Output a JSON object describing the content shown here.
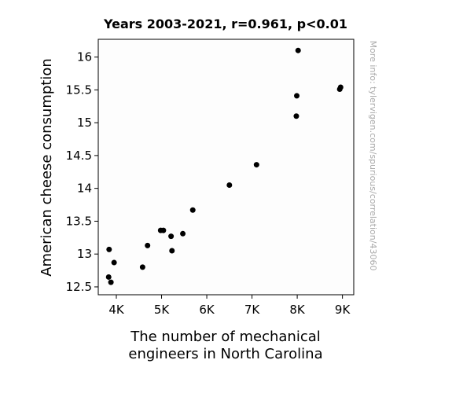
{
  "chart_data": {
    "type": "scatter",
    "title": "Years 2003-2021, r=0.961, p<0.01",
    "xlabel_lines": [
      "The number of mechanical",
      "engineers in North Carolina"
    ],
    "ylabel": "American cheese consumption",
    "xlim": [
      3600,
      9250
    ],
    "ylim": [
      12.38,
      16.27
    ],
    "xticks": [
      {
        "value": 4000,
        "label": "4K"
      },
      {
        "value": 5000,
        "label": "5K"
      },
      {
        "value": 6000,
        "label": "6K"
      },
      {
        "value": 7000,
        "label": "7K"
      },
      {
        "value": 8000,
        "label": "8K"
      },
      {
        "value": 9000,
        "label": "9K"
      }
    ],
    "yticks": [
      {
        "value": 12.5,
        "label": "12.5"
      },
      {
        "value": 13,
        "label": "13"
      },
      {
        "value": 13.5,
        "label": "13.5"
      },
      {
        "value": 14,
        "label": "14"
      },
      {
        "value": 14.5,
        "label": "14.5"
      },
      {
        "value": 15,
        "label": "15"
      },
      {
        "value": 15.5,
        "label": "15.5"
      },
      {
        "value": 16,
        "label": "16"
      }
    ],
    "points": [
      {
        "x": 3840,
        "y": 13.07
      },
      {
        "x": 3830,
        "y": 12.65
      },
      {
        "x": 3880,
        "y": 12.57
      },
      {
        "x": 3950,
        "y": 12.87
      },
      {
        "x": 4580,
        "y": 12.8
      },
      {
        "x": 4690,
        "y": 13.13
      },
      {
        "x": 4980,
        "y": 13.36
      },
      {
        "x": 5040,
        "y": 13.36
      },
      {
        "x": 5210,
        "y": 13.27
      },
      {
        "x": 5230,
        "y": 13.05
      },
      {
        "x": 5470,
        "y": 13.31
      },
      {
        "x": 5690,
        "y": 13.67
      },
      {
        "x": 6500,
        "y": 14.05
      },
      {
        "x": 7100,
        "y": 14.36
      },
      {
        "x": 7980,
        "y": 15.1
      },
      {
        "x": 7990,
        "y": 15.41
      },
      {
        "x": 8020,
        "y": 16.1
      },
      {
        "x": 8940,
        "y": 15.51
      },
      {
        "x": 8960,
        "y": 15.54
      }
    ],
    "point_color": "#000000",
    "grid": false
  },
  "watermark": "More info: tylervigen.com/spurious/correlation/43060"
}
